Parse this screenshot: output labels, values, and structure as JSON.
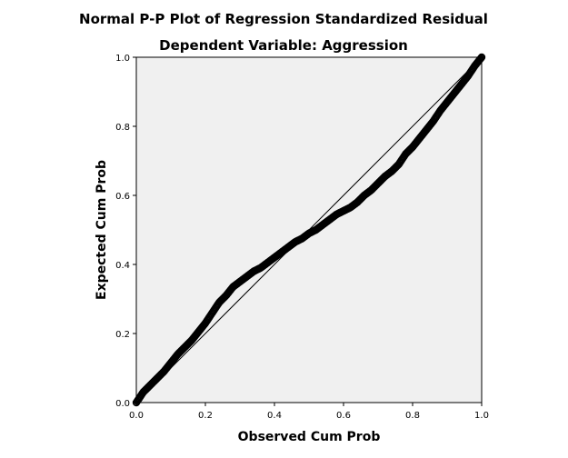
{
  "chart_data": {
    "type": "scatter",
    "title": "Normal P-P Plot of Regression Standardized Residual",
    "subtitle": "Dependent Variable: Aggression",
    "xlabel": "Observed Cum Prob",
    "ylabel": "Expected Cum Prob",
    "xlim": [
      0,
      1
    ],
    "ylim": [
      0,
      1
    ],
    "x_ticks": [
      "0.0",
      "0.2",
      "0.4",
      "0.6",
      "0.8",
      "1.0"
    ],
    "y_ticks": [
      "0.0",
      "0.2",
      "0.4",
      "0.6",
      "0.8",
      "1.0"
    ],
    "grid": false,
    "reference_line": {
      "from": [
        0,
        0
      ],
      "to": [
        1,
        1
      ]
    },
    "series": [
      {
        "x": [
          0.0,
          0.02,
          0.04,
          0.06,
          0.08,
          0.1,
          0.12,
          0.14,
          0.16,
          0.18,
          0.2,
          0.22,
          0.24,
          0.26,
          0.28,
          0.3,
          0.32,
          0.34,
          0.36,
          0.38,
          0.4,
          0.42,
          0.44,
          0.46,
          0.48,
          0.5,
          0.52,
          0.54,
          0.56,
          0.58,
          0.6,
          0.62,
          0.64,
          0.66,
          0.68,
          0.7,
          0.72,
          0.74,
          0.76,
          0.78,
          0.8,
          0.82,
          0.84,
          0.86,
          0.88,
          0.9,
          0.92,
          0.94,
          0.96,
          0.98,
          1.0
        ],
        "y": [
          0.0,
          0.03,
          0.05,
          0.07,
          0.09,
          0.115,
          0.14,
          0.16,
          0.18,
          0.205,
          0.23,
          0.26,
          0.29,
          0.31,
          0.335,
          0.35,
          0.365,
          0.38,
          0.39,
          0.405,
          0.42,
          0.435,
          0.45,
          0.465,
          0.475,
          0.49,
          0.5,
          0.515,
          0.53,
          0.545,
          0.555,
          0.565,
          0.58,
          0.6,
          0.615,
          0.635,
          0.655,
          0.67,
          0.69,
          0.72,
          0.74,
          0.765,
          0.79,
          0.815,
          0.845,
          0.87,
          0.895,
          0.92,
          0.945,
          0.975,
          1.0
        ]
      }
    ]
  }
}
